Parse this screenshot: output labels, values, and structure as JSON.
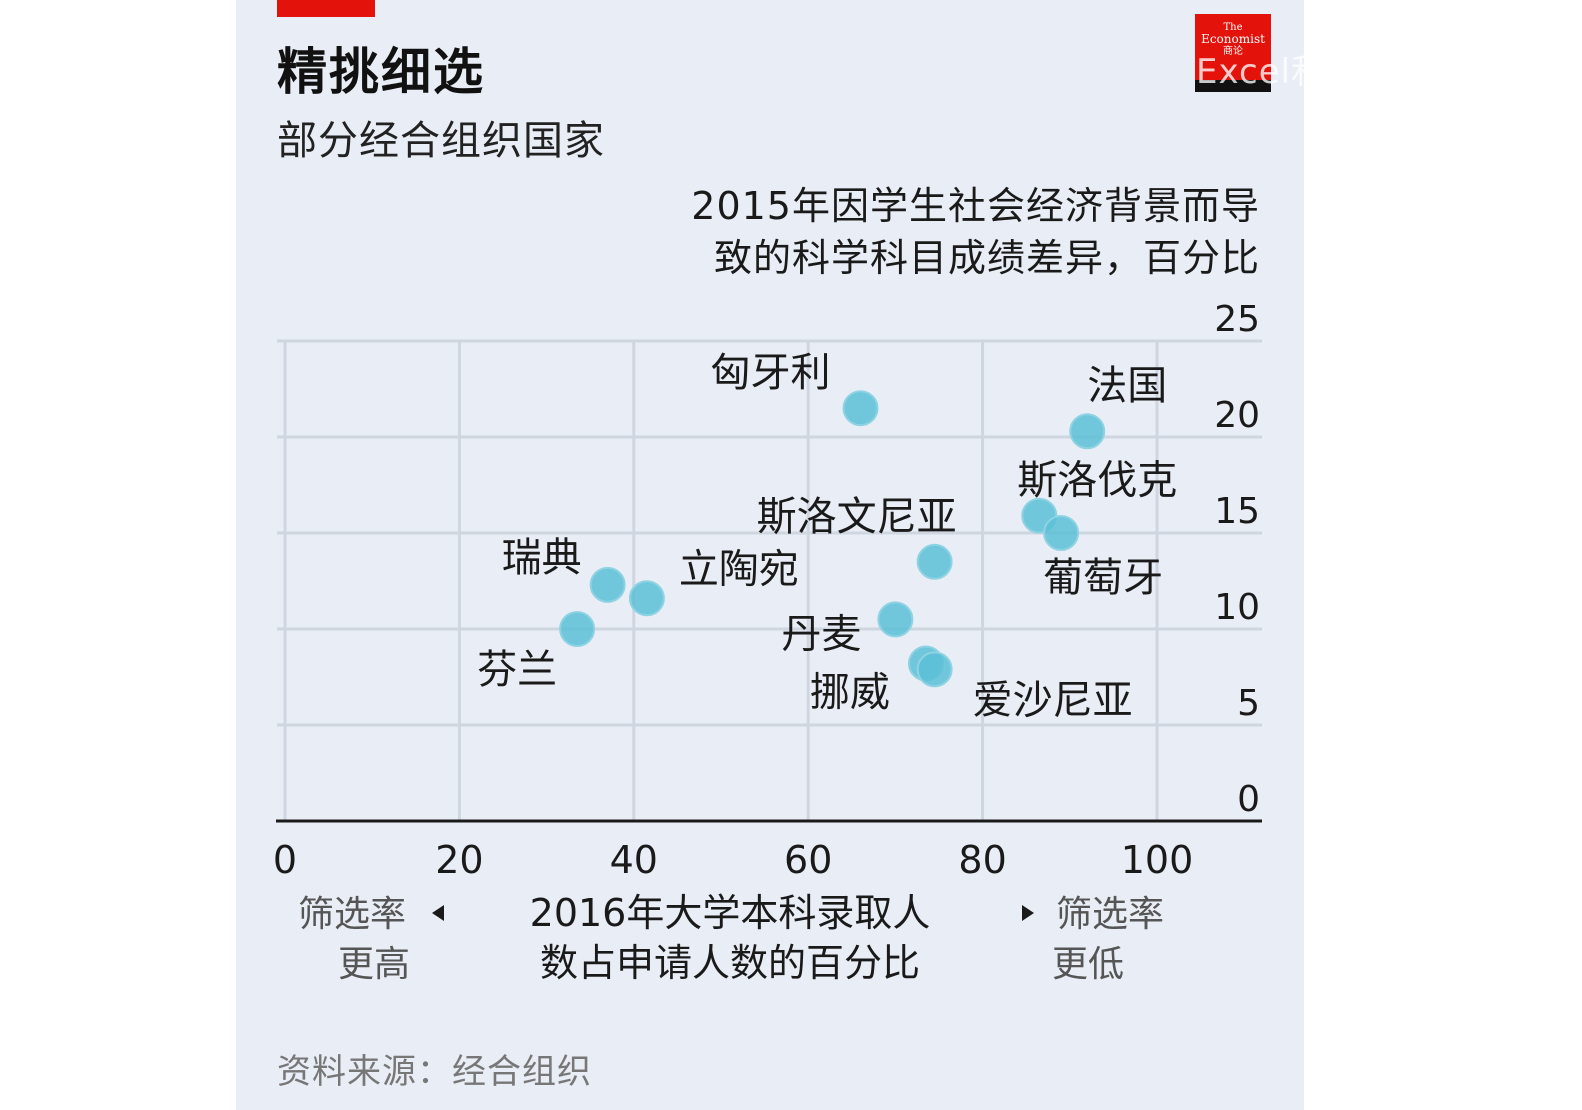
{
  "header": {
    "title": "精挑细选",
    "subtitle": "部分经合组织国家"
  },
  "logo": {
    "line1": "The",
    "line2": "Economist",
    "line3": "商论"
  },
  "watermark": "Excel和PowerBI聚焦",
  "source": "资料来源：经合组织",
  "colors": {
    "accent": "#e3120b",
    "point": "#5bbfd6",
    "grid": "#cfd6e0",
    "axis": "#1a1a1a",
    "panel": "#e9eef6"
  },
  "chart_data": {
    "type": "scatter",
    "title": "精挑细选",
    "subtitle": "部分经合组织国家",
    "ylabel_lines": [
      "2015年因学生社会经济背景而导",
      "致的科学科目成绩差异，百分比"
    ],
    "xlabel_lines": [
      "2016年大学本科录取人",
      "数占申请人数的百分比"
    ],
    "xlim": [
      0,
      112
    ],
    "ylim": [
      0,
      25
    ],
    "xticks": [
      "0",
      "20",
      "40",
      "60",
      "80",
      "100"
    ],
    "yticks": [
      "0",
      "5",
      "10",
      "15",
      "20",
      "25"
    ],
    "left_note": [
      "筛选率",
      "更高"
    ],
    "right_note": [
      "筛选率",
      "更低"
    ],
    "grid": true,
    "points": [
      {
        "label": "匈牙利",
        "x": 66,
        "y": 21.5
      },
      {
        "label": "法国",
        "x": 92,
        "y": 20.3
      },
      {
        "label": "斯洛伐克",
        "x": 86.5,
        "y": 15.9
      },
      {
        "label": "葡萄牙",
        "x": 89,
        "y": 15.0
      },
      {
        "label": "斯洛文尼亚",
        "x": 74.5,
        "y": 13.5
      },
      {
        "label": "瑞典",
        "x": 37,
        "y": 12.3
      },
      {
        "label": "立陶宛",
        "x": 41.5,
        "y": 11.6
      },
      {
        "label": "芬兰",
        "x": 33.5,
        "y": 10.0
      },
      {
        "label": "丹麦",
        "x": 70,
        "y": 10.5
      },
      {
        "label": "挪威",
        "x": 73.5,
        "y": 8.2
      },
      {
        "label": "爱沙尼亚",
        "x": 74.5,
        "y": 7.9
      }
    ]
  }
}
